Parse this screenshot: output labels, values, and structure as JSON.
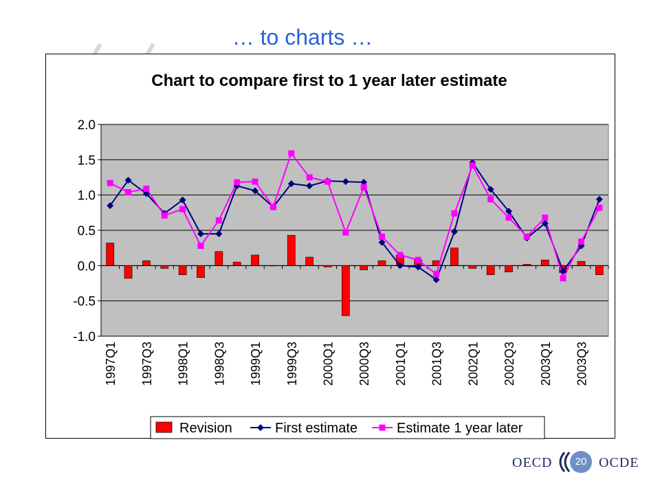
{
  "slide": {
    "title": "… to charts …",
    "page_number": "20",
    "logo_left": "OECD",
    "logo_right": "OCDE"
  },
  "colors": {
    "title_blue": "#2a5fd8",
    "plot_bg": "#c0c0c0",
    "revision": "#ff0000",
    "first_estimate": "#000080",
    "estimate_1yr": "#ff00ff"
  },
  "chart_data": {
    "type": "bar",
    "title": "Chart to compare first to 1 year later estimate",
    "xlabel": "",
    "ylabel": "",
    "ylim": [
      -1.0,
      2.0
    ],
    "yticks": [
      "2.0",
      "1.5",
      "1.0",
      "0.5",
      "0.0",
      "-0.5",
      "-1.0"
    ],
    "grid": true,
    "legend_position": "bottom",
    "categories": [
      "1997Q1",
      "1997Q2",
      "1997Q3",
      "1997Q4",
      "1998Q1",
      "1998Q2",
      "1998Q3",
      "1998Q4",
      "1999Q1",
      "1999Q2",
      "1999Q3",
      "1999Q4",
      "2000Q1",
      "2000Q2",
      "2000Q3",
      "2000Q4",
      "2001Q1",
      "2001Q2",
      "2001Q3",
      "2001Q4",
      "2002Q1",
      "2002Q2",
      "2002Q3",
      "2002Q4",
      "2003Q1",
      "2003Q2",
      "2003Q3",
      "2003Q4"
    ],
    "tick_labels": [
      "1997Q1",
      "1997Q3",
      "1998Q1",
      "1998Q3",
      "1999Q1",
      "1999Q3",
      "2000Q1",
      "2000Q3",
      "2001Q1",
      "2001Q3",
      "2002Q1",
      "2002Q3",
      "2003Q1",
      "2003Q3"
    ],
    "series": [
      {
        "name": "Revision",
        "type": "bar",
        "values": [
          0.32,
          -0.18,
          0.07,
          -0.04,
          -0.13,
          -0.17,
          0.2,
          0.05,
          0.15,
          0.0,
          0.43,
          0.12,
          -0.02,
          -0.71,
          -0.06,
          0.07,
          0.15,
          0.08,
          0.07,
          0.25,
          -0.04,
          -0.13,
          -0.09,
          0.02,
          0.08,
          -0.1,
          0.06,
          -0.13
        ]
      },
      {
        "name": "First estimate",
        "type": "line",
        "values": [
          0.85,
          1.21,
          1.02,
          0.74,
          0.93,
          0.45,
          0.45,
          1.13,
          1.06,
          0.83,
          1.16,
          1.13,
          1.2,
          1.19,
          1.18,
          0.33,
          0.0,
          -0.02,
          -0.2,
          0.48,
          1.46,
          1.08,
          0.77,
          0.39,
          0.6,
          -0.08,
          0.28,
          0.94
        ]
      },
      {
        "name": "Estimate 1 year later",
        "type": "line",
        "values": [
          1.17,
          1.04,
          1.09,
          0.71,
          0.8,
          0.28,
          0.64,
          1.18,
          1.19,
          0.83,
          1.59,
          1.25,
          1.19,
          0.47,
          1.11,
          0.41,
          0.15,
          0.08,
          -0.12,
          0.74,
          1.42,
          0.94,
          0.68,
          0.41,
          0.68,
          -0.18,
          0.34,
          0.82
        ]
      }
    ]
  }
}
